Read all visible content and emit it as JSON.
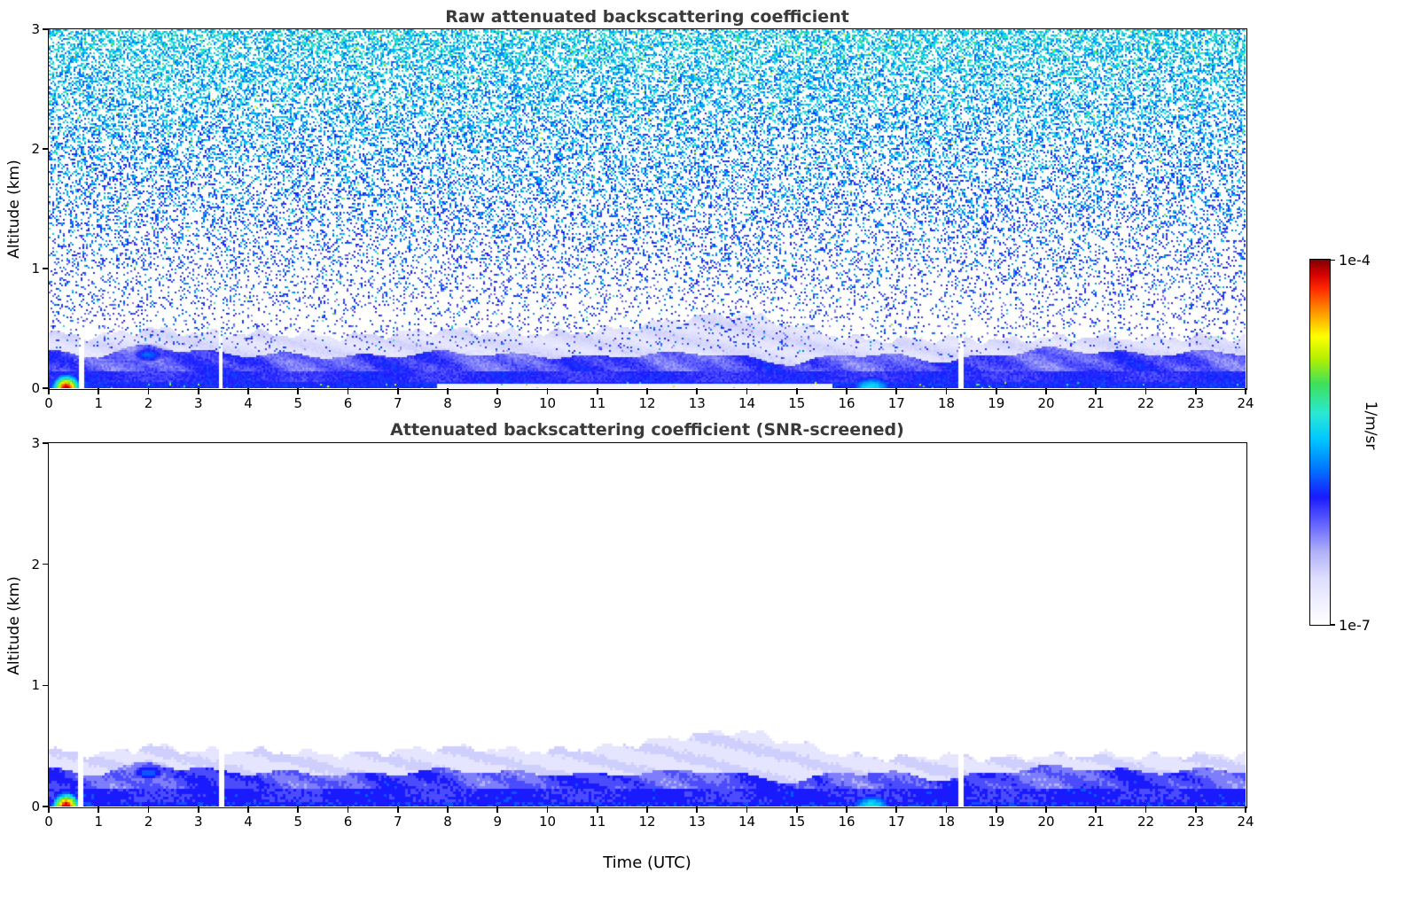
{
  "axes": {
    "x": {
      "label": "Time (UTC)",
      "min": 0,
      "max": 24,
      "ticks": [
        0,
        1,
        2,
        3,
        4,
        5,
        6,
        7,
        8,
        9,
        10,
        11,
        12,
        13,
        14,
        15,
        16,
        17,
        18,
        19,
        20,
        21,
        22,
        23,
        24
      ]
    },
    "y": {
      "label": "Altitude (km)",
      "min": 0,
      "max": 3,
      "ticks": [
        0,
        1,
        2,
        3
      ]
    }
  },
  "colorbar": {
    "label": "1/m/sr",
    "tick_top": "1e-4",
    "tick_bottom": "1e-7",
    "scale": "log"
  },
  "chart_data": {
    "type": "heatmap",
    "panels": [
      {
        "title": "Raw attenuated backscattering coefficient",
        "noise": true
      },
      {
        "title": "Attenuated backscattering coefficient (SNR-screened)",
        "noise": false
      }
    ],
    "x_range": [
      0,
      24
    ],
    "y_range": [
      0,
      3
    ],
    "x_unit": "hours UTC",
    "y_unit": "km",
    "value_scale": {
      "type": "log",
      "min": 1e-07,
      "max": 0.0001,
      "units": "1/m/sr"
    },
    "colormap": {
      "stops": [
        [
          0.0,
          "#ffffff"
        ],
        [
          0.06,
          "#f0f0ff"
        ],
        [
          0.13,
          "#dcdcff"
        ],
        [
          0.2,
          "#b0b0f8"
        ],
        [
          0.28,
          "#6060ff"
        ],
        [
          0.35,
          "#1a1aff"
        ],
        [
          0.43,
          "#0078ff"
        ],
        [
          0.51,
          "#00c8ff"
        ],
        [
          0.58,
          "#2ae8d2"
        ],
        [
          0.66,
          "#3ee05a"
        ],
        [
          0.73,
          "#b4f000"
        ],
        [
          0.79,
          "#ffff00"
        ],
        [
          0.86,
          "#ff9000"
        ],
        [
          0.92,
          "#ff2a00"
        ],
        [
          0.96,
          "#d40000"
        ],
        [
          1.0,
          "#7f0000"
        ]
      ]
    },
    "seed": 7,
    "gaps": {
      "times": [
        0.65,
        3.45,
        18.3
      ],
      "half_width": 0.05
    },
    "layers": {
      "haze_top_km": [
        0.46,
        0.43,
        0.5,
        0.46,
        0.46,
        0.45,
        0.43,
        0.46,
        0.49,
        0.47,
        0.46,
        0.48,
        0.53,
        0.6,
        0.62,
        0.52,
        0.42,
        0.4,
        0.42,
        0.4,
        0.42,
        0.43,
        0.41,
        0.43,
        0.43
      ],
      "blue_top_km": [
        0.3,
        0.27,
        0.36,
        0.3,
        0.28,
        0.28,
        0.26,
        0.28,
        0.3,
        0.28,
        0.27,
        0.26,
        0.28,
        0.3,
        0.25,
        0.2,
        0.29,
        0.27,
        0.22,
        0.28,
        0.33,
        0.31,
        0.28,
        0.3,
        0.3
      ],
      "dark_top_km": 0.14
    },
    "features": {
      "hotspot": {
        "t": 0.35,
        "sigma_t": 0.3,
        "sigma_alt": 0.12,
        "peak": 0.97,
        "description": "strong near-surface return ~00:00-01:00 UTC below 0.25 km reaching ~1e-4 1/m/sr"
      },
      "cyan_patch": {
        "t": 16.5,
        "sigma_t": 0.55,
        "sigma_alt": 0.13,
        "peak": 0.55,
        "description": "enhanced backscatter near surface 16-17 UTC"
      },
      "elevated_blob": {
        "t": 2.0,
        "alt": 0.28,
        "sigma_t": 0.45,
        "sigma_alt": 0.09,
        "peak": 0.42,
        "description": "slightly elevated layer near 2 UTC at ~0.3 km"
      },
      "surface_gap": {
        "t_start": 7.8,
        "t_end": 15.7,
        "description": "thin white notch in lowest gates mid-day (raw panel)"
      }
    },
    "noise": {
      "base_density": 0.1,
      "density_slope": 0.18,
      "mean_base": 0.3,
      "mean_slope": 0.075,
      "jitter": 0.22,
      "spark_prob": 0.03,
      "spark_boost": 0.22,
      "description": "speckle noise in raw panel, density and intensity increase with altitude (blue to cyan/green)"
    }
  }
}
